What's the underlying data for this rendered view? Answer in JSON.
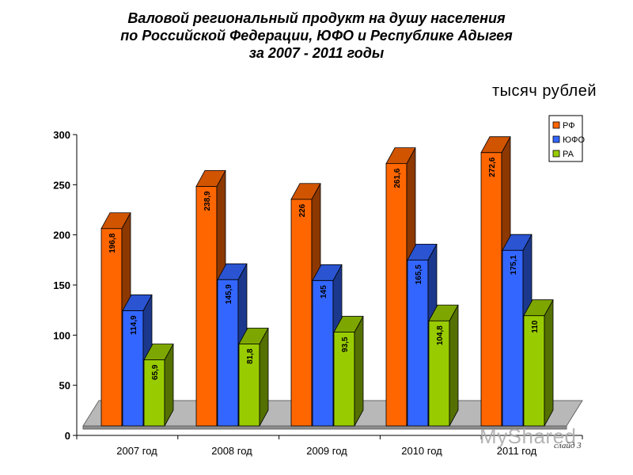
{
  "title": {
    "line1": "Валовой региональный продукт на душу населения",
    "line2": "по Российской Федерации, ЮФО и  Республике Адыгея",
    "line3": "за 2007 - 2011 годы"
  },
  "units_label": "тысяч рублей",
  "watermark": "MyShared",
  "slide_label": "слайд 3",
  "chart_data": {
    "type": "bar",
    "categories": [
      "2007 год",
      "2008 год",
      "2009 год",
      "2010 год",
      "2011 год"
    ],
    "series": [
      {
        "name": "РФ",
        "color": "#ff6600",
        "values": [
          196.8,
          238.9,
          226,
          261.6,
          272.6
        ],
        "labels": [
          "196,8",
          "238,9",
          "226",
          "261,6",
          "272,6"
        ]
      },
      {
        "name": "ЮФО",
        "color": "#3366ff",
        "values": [
          114.9,
          145.9,
          145,
          165.5,
          175.1
        ],
        "labels": [
          "114,9",
          "145,9",
          "145",
          "165,5",
          "175,1"
        ]
      },
      {
        "name": "РА",
        "color": "#99cc00",
        "values": [
          65.9,
          81.8,
          93.5,
          104.8,
          110
        ],
        "labels": [
          "65,9",
          "81,8",
          "93,5",
          "104,8",
          "110"
        ]
      }
    ],
    "ylim": [
      0,
      300
    ],
    "yticks": [
      0,
      50,
      100,
      150,
      200,
      250,
      300
    ],
    "legend_position": "top-right",
    "bar_style": "3d"
  }
}
